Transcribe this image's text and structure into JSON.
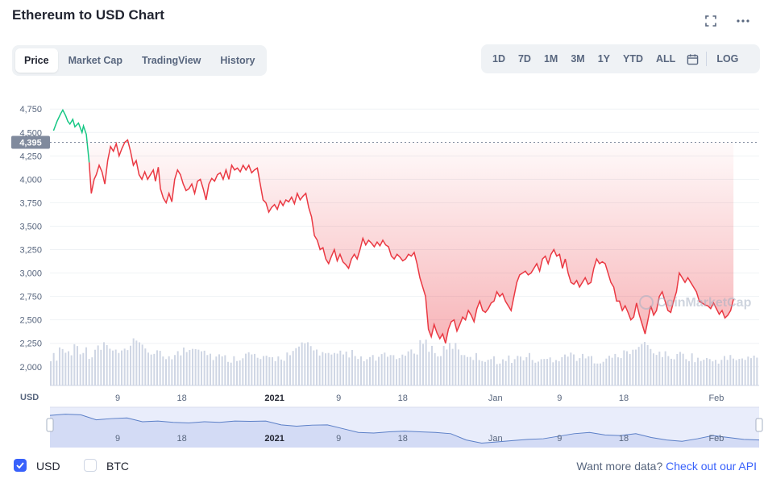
{
  "header": {
    "title": "Ethereum to USD Chart",
    "fullscreen_icon": "fullscreen-icon",
    "more_icon": "more-dots-icon"
  },
  "tabs": [
    {
      "label": "Price",
      "active": true
    },
    {
      "label": "Market Cap",
      "active": false
    },
    {
      "label": "TradingView",
      "active": false
    },
    {
      "label": "History",
      "active": false
    }
  ],
  "ranges": [
    "1D",
    "7D",
    "1M",
    "3M",
    "1Y",
    "YTD",
    "ALL"
  ],
  "log_label": "LOG",
  "calendar_icon": "calendar-icon",
  "colors": {
    "up": "#16c784",
    "down": "#ea3943",
    "accent": "#3861fb",
    "navigator_line": "#5b7fc7"
  },
  "chart_data": {
    "type": "line",
    "currency_label": "USD",
    "reference_price": 4395,
    "reference_label": "4,395",
    "ylim": [
      1800,
      4950
    ],
    "y_ticks": [
      {
        "value": 4750,
        "label": "4,750"
      },
      {
        "value": 4500,
        "label": "4,500"
      },
      {
        "value": 4250,
        "label": "4,250"
      },
      {
        "value": 4000,
        "label": "4,000"
      },
      {
        "value": 3750,
        "label": "3,750"
      },
      {
        "value": 3500,
        "label": "3,500"
      },
      {
        "value": 3250,
        "label": "3,250"
      },
      {
        "value": 3000,
        "label": "3,000"
      },
      {
        "value": 2750,
        "label": "2,750"
      },
      {
        "value": 2500,
        "label": "2,500"
      },
      {
        "value": 2250,
        "label": "2,250"
      },
      {
        "value": 2000,
        "label": "2,000"
      }
    ],
    "x_ticks": [
      {
        "day": 9,
        "label": "9",
        "bold": false
      },
      {
        "day": 18,
        "label": "18",
        "bold": false
      },
      {
        "day": 31,
        "label": "2021",
        "bold": true
      },
      {
        "day": 40,
        "label": "9",
        "bold": false
      },
      {
        "day": 49,
        "label": "18",
        "bold": false
      },
      {
        "day": 62,
        "label": "Jan",
        "bold": false
      },
      {
        "day": 71,
        "label": "9",
        "bold": false
      },
      {
        "day": 80,
        "label": "18",
        "bold": false
      },
      {
        "day": 93,
        "label": "Feb",
        "bold": false
      }
    ],
    "x_range_days": [
      -0.5,
      99
    ],
    "price_series": [
      [
        0,
        4520
      ],
      [
        0.5,
        4620
      ],
      [
        1,
        4700
      ],
      [
        1.3,
        4740
      ],
      [
        1.7,
        4680
      ],
      [
        2,
        4620
      ],
      [
        2.3,
        4590
      ],
      [
        2.7,
        4640
      ],
      [
        3,
        4560
      ],
      [
        3.5,
        4600
      ],
      [
        4,
        4500
      ],
      [
        4.2,
        4570
      ],
      [
        4.6,
        4480
      ],
      [
        5,
        4180
      ],
      [
        5.3,
        3850
      ],
      [
        5.7,
        4000
      ],
      [
        6,
        4050
      ],
      [
        6.4,
        4150
      ],
      [
        6.8,
        4080
      ],
      [
        7.2,
        3950
      ],
      [
        7.6,
        4200
      ],
      [
        8,
        4350
      ],
      [
        8.4,
        4300
      ],
      [
        8.8,
        4380
      ],
      [
        9.2,
        4250
      ],
      [
        9.6,
        4330
      ],
      [
        10,
        4395
      ],
      [
        10.4,
        4420
      ],
      [
        10.8,
        4300
      ],
      [
        11.2,
        4150
      ],
      [
        11.6,
        4200
      ],
      [
        12,
        4050
      ],
      [
        12.4,
        4000
      ],
      [
        12.8,
        4080
      ],
      [
        13.2,
        4000
      ],
      [
        13.6,
        4050
      ],
      [
        14,
        4100
      ],
      [
        14.3,
        3980
      ],
      [
        14.7,
        4130
      ],
      [
        15,
        3900
      ],
      [
        15.4,
        3800
      ],
      [
        15.8,
        3750
      ],
      [
        16.2,
        3850
      ],
      [
        16.6,
        3760
      ],
      [
        17,
        4000
      ],
      [
        17.4,
        4100
      ],
      [
        17.8,
        4050
      ],
      [
        18.2,
        3950
      ],
      [
        18.6,
        3880
      ],
      [
        19,
        3900
      ],
      [
        19.4,
        3950
      ],
      [
        19.8,
        3850
      ],
      [
        20.2,
        3980
      ],
      [
        20.6,
        4000
      ],
      [
        21,
        3900
      ],
      [
        21.4,
        3780
      ],
      [
        21.8,
        3950
      ],
      [
        22.2,
        4010
      ],
      [
        22.6,
        3980
      ],
      [
        23,
        4050
      ],
      [
        23.4,
        4070
      ],
      [
        23.8,
        4000
      ],
      [
        24.2,
        4100
      ],
      [
        24.6,
        4000
      ],
      [
        25,
        4150
      ],
      [
        25.4,
        4100
      ],
      [
        25.8,
        4120
      ],
      [
        26.2,
        4080
      ],
      [
        26.6,
        4150
      ],
      [
        27,
        4100
      ],
      [
        27.4,
        4150
      ],
      [
        27.8,
        4070
      ],
      [
        28.2,
        4100
      ],
      [
        28.6,
        4120
      ],
      [
        29,
        3950
      ],
      [
        29.4,
        3780
      ],
      [
        29.8,
        3750
      ],
      [
        30.2,
        3650
      ],
      [
        30.6,
        3700
      ],
      [
        31,
        3730
      ],
      [
        31.4,
        3680
      ],
      [
        31.8,
        3770
      ],
      [
        32.2,
        3720
      ],
      [
        32.6,
        3780
      ],
      [
        33,
        3760
      ],
      [
        33.4,
        3810
      ],
      [
        33.8,
        3740
      ],
      [
        34.2,
        3850
      ],
      [
        34.6,
        3780
      ],
      [
        35,
        3820
      ],
      [
        35.4,
        3850
      ],
      [
        35.8,
        3700
      ],
      [
        36.2,
        3600
      ],
      [
        36.6,
        3400
      ],
      [
        37,
        3350
      ],
      [
        37.4,
        3250
      ],
      [
        37.8,
        3270
      ],
      [
        38.2,
        3150
      ],
      [
        38.6,
        3100
      ],
      [
        39,
        3180
      ],
      [
        39.4,
        3250
      ],
      [
        39.8,
        3130
      ],
      [
        40.2,
        3200
      ],
      [
        40.6,
        3120
      ],
      [
        41,
        3090
      ],
      [
        41.4,
        3050
      ],
      [
        41.8,
        3150
      ],
      [
        42.2,
        3200
      ],
      [
        42.6,
        3150
      ],
      [
        43,
        3250
      ],
      [
        43.4,
        3370
      ],
      [
        43.8,
        3300
      ],
      [
        44.2,
        3350
      ],
      [
        44.6,
        3320
      ],
      [
        45,
        3280
      ],
      [
        45.4,
        3330
      ],
      [
        45.8,
        3290
      ],
      [
        46.2,
        3350
      ],
      [
        46.6,
        3300
      ],
      [
        47,
        3280
      ],
      [
        47.4,
        3180
      ],
      [
        47.8,
        3150
      ],
      [
        48.2,
        3200
      ],
      [
        48.6,
        3170
      ],
      [
        49,
        3130
      ],
      [
        49.4,
        3150
      ],
      [
        49.8,
        3200
      ],
      [
        50.2,
        3180
      ],
      [
        50.6,
        3220
      ],
      [
        51,
        3100
      ],
      [
        51.4,
        2950
      ],
      [
        51.8,
        2850
      ],
      [
        52.2,
        2750
      ],
      [
        52.6,
        2400
      ],
      [
        53,
        2320
      ],
      [
        53.4,
        2450
      ],
      [
        53.8,
        2360
      ],
      [
        54.2,
        2300
      ],
      [
        54.6,
        2350
      ],
      [
        55,
        2250
      ],
      [
        55.4,
        2400
      ],
      [
        55.8,
        2480
      ],
      [
        56.2,
        2500
      ],
      [
        56.6,
        2380
      ],
      [
        57,
        2450
      ],
      [
        57.4,
        2530
      ],
      [
        57.8,
        2500
      ],
      [
        58.2,
        2600
      ],
      [
        58.6,
        2550
      ],
      [
        59,
        2480
      ],
      [
        59.4,
        2620
      ],
      [
        59.8,
        2700
      ],
      [
        60.2,
        2600
      ],
      [
        60.6,
        2580
      ],
      [
        61,
        2620
      ],
      [
        61.4,
        2680
      ],
      [
        61.8,
        2700
      ],
      [
        62.2,
        2800
      ],
      [
        62.6,
        2750
      ],
      [
        63,
        2780
      ],
      [
        63.4,
        2700
      ],
      [
        63.8,
        2650
      ],
      [
        64.2,
        2600
      ],
      [
        64.6,
        2750
      ],
      [
        65,
        2900
      ],
      [
        65.4,
        2980
      ],
      [
        65.8,
        3000
      ],
      [
        66.2,
        3020
      ],
      [
        66.6,
        2980
      ],
      [
        67,
        3000
      ],
      [
        67.4,
        3050
      ],
      [
        67.8,
        3100
      ],
      [
        68.2,
        3020
      ],
      [
        68.6,
        3150
      ],
      [
        69,
        3180
      ],
      [
        69.4,
        3100
      ],
      [
        69.8,
        3200
      ],
      [
        70.2,
        3250
      ],
      [
        70.6,
        3180
      ],
      [
        71,
        3200
      ],
      [
        71.4,
        3050
      ],
      [
        71.8,
        3150
      ],
      [
        72.2,
        3000
      ],
      [
        72.6,
        2900
      ],
      [
        73,
        2880
      ],
      [
        73.4,
        2920
      ],
      [
        73.8,
        2850
      ],
      [
        74.2,
        2900
      ],
      [
        74.6,
        2950
      ],
      [
        75,
        2880
      ],
      [
        75.4,
        2900
      ],
      [
        75.8,
        3050
      ],
      [
        76.2,
        3150
      ],
      [
        76.6,
        3100
      ],
      [
        77,
        3120
      ],
      [
        77.4,
        3100
      ],
      [
        77.8,
        3000
      ],
      [
        78.2,
        2900
      ],
      [
        78.6,
        2850
      ],
      [
        79,
        2700
      ],
      [
        79.4,
        2700
      ],
      [
        79.8,
        2600
      ],
      [
        80.2,
        2650
      ],
      [
        80.6,
        2580
      ],
      [
        81,
        2500
      ],
      [
        81.4,
        2530
      ],
      [
        81.8,
        2680
      ],
      [
        82.2,
        2550
      ],
      [
        82.6,
        2450
      ],
      [
        83,
        2350
      ],
      [
        83.4,
        2500
      ],
      [
        83.8,
        2650
      ],
      [
        84.2,
        2550
      ],
      [
        84.6,
        2600
      ],
      [
        85,
        2750
      ],
      [
        85.4,
        2800
      ],
      [
        85.8,
        2700
      ],
      [
        86.2,
        2600
      ],
      [
        86.6,
        2580
      ],
      [
        87,
        2700
      ],
      [
        87.4,
        2800
      ],
      [
        87.8,
        3000
      ],
      [
        88.2,
        2950
      ],
      [
        88.6,
        2900
      ],
      [
        89,
        2950
      ],
      [
        89.4,
        2900
      ],
      [
        89.8,
        2850
      ],
      [
        90.2,
        2800
      ],
      [
        90.6,
        2700
      ],
      [
        91,
        2680
      ],
      [
        91.4,
        2660
      ],
      [
        91.8,
        2650
      ],
      [
        92.2,
        2620
      ],
      [
        92.6,
        2680
      ],
      [
        93,
        2620
      ],
      [
        93.4,
        2560
      ],
      [
        93.8,
        2600
      ],
      [
        94.2,
        2520
      ],
      [
        94.6,
        2550
      ],
      [
        95,
        2600
      ],
      [
        95.4,
        2720
      ]
    ],
    "volume_series": [
      0.55,
      0.75,
      0.65,
      0.8,
      0.7,
      0.6,
      0.72,
      0.85,
      0.68,
      0.62,
      0.7,
      0.9,
      0.78,
      0.66,
      0.6,
      0.55,
      0.58,
      0.62,
      0.7,
      0.8,
      0.75,
      0.6,
      0.55,
      0.52,
      0.5,
      0.55,
      0.6,
      0.58,
      0.5,
      0.48,
      0.52,
      0.55,
      0.6,
      0.7,
      0.85,
      0.78,
      0.65,
      0.58,
      0.55,
      0.6,
      0.62,
      0.5,
      0.48,
      0.5,
      0.52,
      0.55,
      0.58,
      0.5,
      0.62,
      0.7,
      0.88,
      0.75,
      0.62,
      0.7,
      0.8,
      0.65,
      0.6,
      0.55,
      0.52,
      0.5,
      0.48,
      0.45,
      0.5,
      0.52,
      0.55,
      0.48,
      0.45,
      0.5,
      0.52,
      0.6,
      0.58,
      0.55,
      0.52,
      0.5,
      0.48,
      0.5,
      0.55,
      0.6,
      0.65,
      0.78,
      0.82,
      0.7,
      0.62,
      0.58,
      0.55,
      0.6,
      0.55,
      0.5,
      0.48,
      0.45,
      0.48,
      0.5,
      0.52,
      0.48,
      0.5,
      0.55
    ],
    "navigator_series": [
      4550,
      4650,
      4600,
      4200,
      4300,
      4350,
      4050,
      4100,
      4000,
      3950,
      4050,
      4000,
      4100,
      4080,
      4100,
      3800,
      3700,
      3780,
      3800,
      3500,
      3200,
      3150,
      3250,
      3300,
      3250,
      3200,
      3100,
      2600,
      2350,
      2450,
      2550,
      2650,
      2700,
      2900,
      3100,
      3200,
      3000,
      2950,
      3100,
      2800,
      2600,
      2500,
      2700,
      2950,
      2800,
      2650,
      2600
    ],
    "watermark": "CoinMarketCap"
  },
  "footer": {
    "usd_label": "USD",
    "usd_checked": true,
    "btc_label": "BTC",
    "btc_checked": false,
    "api_prefix": "Want more data?",
    "api_link": "Check out our API"
  }
}
